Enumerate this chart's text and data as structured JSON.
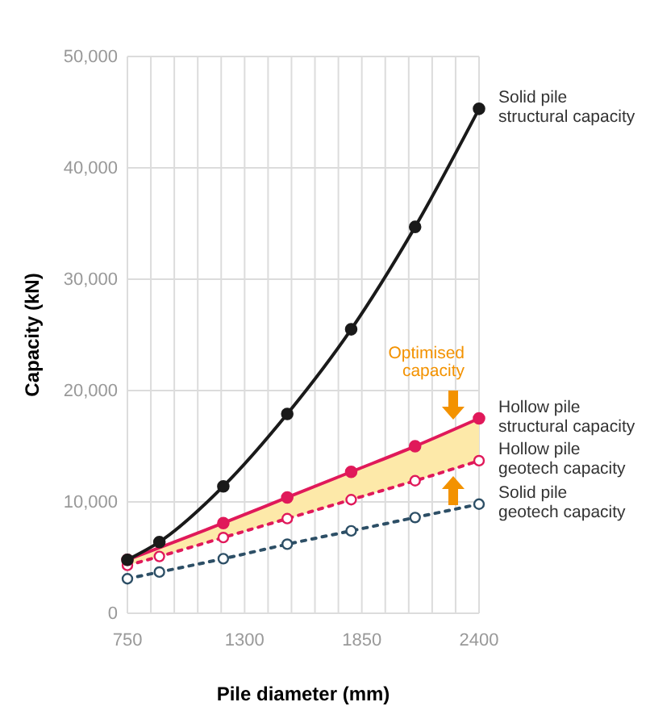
{
  "chart_data": {
    "type": "line",
    "xlabel": "Pile diameter (mm)",
    "ylabel": "Capacity (kN)",
    "x": [
      750,
      900,
      1200,
      1500,
      1800,
      2100,
      2400
    ],
    "xlim": [
      750,
      2400
    ],
    "xticks": [
      750,
      {
        "value": 860,
        "label": null
      },
      {
        "value": 970,
        "label": null
      },
      {
        "value": 1080,
        "label": null
      },
      {
        "value": 1190,
        "label": null
      },
      1300,
      {
        "value": 1410,
        "label": null
      },
      {
        "value": 1520,
        "label": null
      },
      {
        "value": 1630,
        "label": null
      },
      {
        "value": 1740,
        "label": null
      },
      1850,
      {
        "value": 1960,
        "label": null
      },
      {
        "value": 2070,
        "label": null
      },
      {
        "value": 2180,
        "label": null
      },
      {
        "value": 2290,
        "label": null
      },
      2400
    ],
    "ylim": [
      0,
      50000
    ],
    "yticks": [
      0,
      {
        "value": 10000,
        "label": "10,000"
      },
      {
        "value": 20000,
        "label": "20,000"
      },
      {
        "value": 30000,
        "label": "30,000"
      },
      {
        "value": 40000,
        "label": "40,000"
      },
      {
        "value": 50000,
        "label": "50,000"
      }
    ],
    "grid": true,
    "marker": "circle",
    "series": [
      {
        "name": "Solid pile structural capacity",
        "color": "#1a1a1a",
        "line_style": "solid",
        "values": [
          4800,
          6400,
          11400,
          17900,
          25500,
          34700,
          45300
        ]
      },
      {
        "name": "Hollow pile structural capacity",
        "color": "#e0195a",
        "line_style": "solid",
        "x": [
          750,
          1200,
          1500,
          1800,
          2100,
          2400
        ],
        "values": [
          4800,
          8100,
          10400,
          12700,
          15000,
          17500
        ],
        "lower": [
          4300,
          6800,
          8500,
          10200,
          11900,
          13700
        ],
        "upper": [
          4800,
          8100,
          10400,
          12700,
          15000,
          17500
        ]
      },
      {
        "name": "Hollow pile geotech capacity",
        "color": "#e0195a",
        "line_style": "dotted",
        "values": [
          4300,
          5100,
          6800,
          8500,
          10200,
          11900,
          13700
        ]
      },
      {
        "name": "Solid pile geotech capacity",
        "color": "#2d4f66",
        "line_style": "dotted",
        "values": [
          3100,
          3700,
          4900,
          6200,
          7400,
          8600,
          9800
        ]
      }
    ],
    "annotations": [
      "Optimised capacity"
    ]
  }
}
